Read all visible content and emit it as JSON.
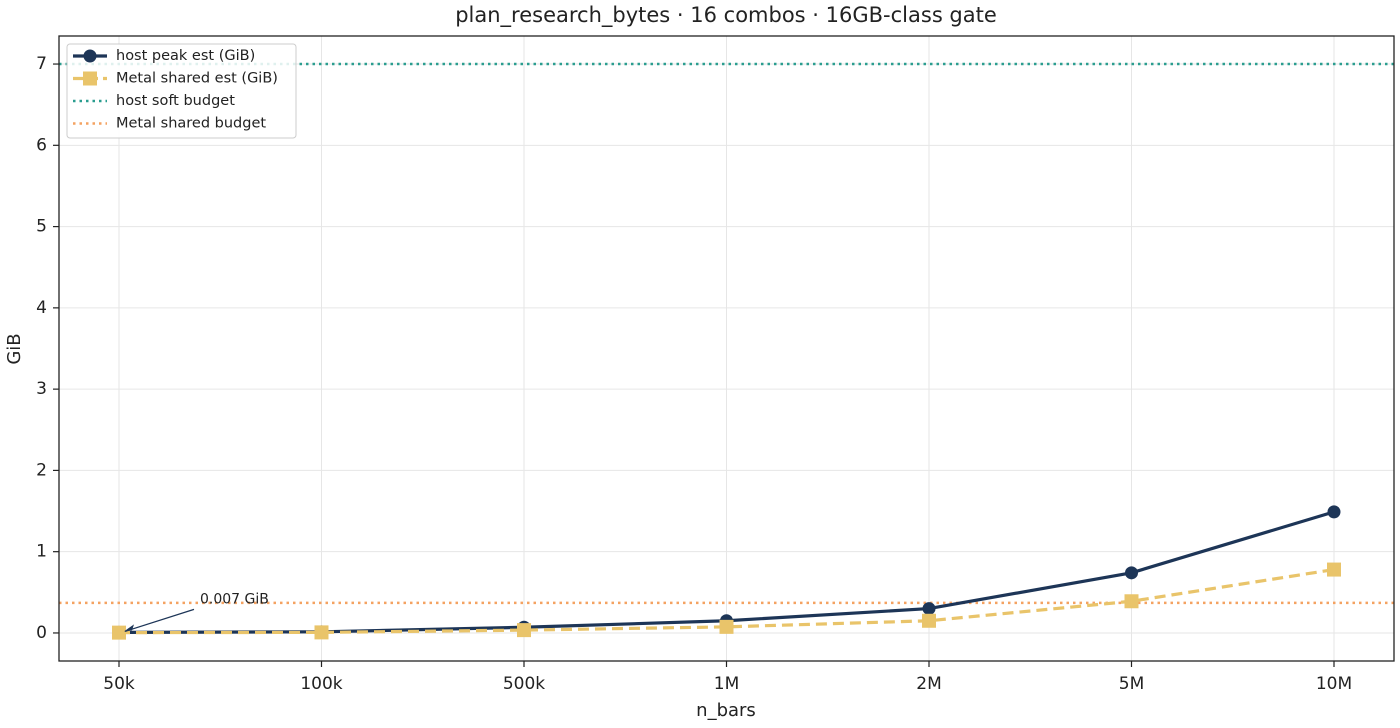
{
  "chart_data": {
    "type": "line",
    "title": "plan_research_bytes · 16 combos · 16GB-class gate",
    "x_label": "n_bars",
    "y_label": "GiB",
    "categories": [
      "50k",
      "100k",
      "500k",
      "1M",
      "2M",
      "5M",
      "10M"
    ],
    "series": [
      {
        "name": "host peak est (GiB)",
        "color": "#1d3557",
        "marker": "circle",
        "dash": "solid",
        "values": [
          0.007,
          0.014,
          0.07,
          0.15,
          0.3,
          0.74,
          1.49
        ]
      },
      {
        "name": "Metal shared est (GiB)",
        "color": "#e9c46a",
        "marker": "square",
        "dash": "dashed",
        "values": [
          0.004,
          0.007,
          0.035,
          0.075,
          0.15,
          0.39,
          0.78
        ]
      }
    ],
    "hlines": [
      {
        "name": "host soft budget",
        "color": "#2a9d8f",
        "value": 7.0
      },
      {
        "name": "Metal shared budget",
        "color": "#f4a261",
        "value": 0.37
      }
    ],
    "annotation": "0.007 GiB",
    "ylim": [
      -0.345,
      7.345
    ],
    "yticks": [
      0,
      1,
      2,
      3,
      4,
      5,
      6,
      7
    ],
    "grid": true,
    "legend": "upper-left"
  }
}
